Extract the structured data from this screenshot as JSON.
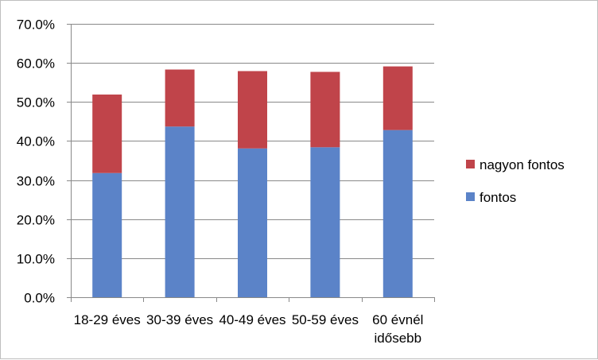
{
  "chart_data": {
    "type": "bar",
    "stacked": true,
    "title": "",
    "xlabel": "",
    "ylabel": "",
    "categories": [
      "18-29 éves",
      "30-39 éves",
      "40-49 éves",
      "50-59 éves",
      "60 évnél idősebb"
    ],
    "category_lines": [
      [
        "18-29 éves"
      ],
      [
        "30-39 éves"
      ],
      [
        "40-49 éves"
      ],
      [
        "50-59 éves"
      ],
      [
        "60 évnél",
        "idősebb"
      ]
    ],
    "series": [
      {
        "name": "fontos",
        "color": "#5B83C8",
        "values": [
          31.8,
          43.7,
          38.1,
          38.4,
          42.8
        ]
      },
      {
        "name": "nagyon fontos",
        "color": "#C0444A",
        "values": [
          20.1,
          14.6,
          19.8,
          19.3,
          16.3
        ]
      }
    ],
    "ylim": [
      0,
      70
    ],
    "yticks": [
      0,
      10,
      20,
      30,
      40,
      50,
      60,
      70
    ],
    "ytick_labels": [
      "0.0%",
      "10.0%",
      "20.0%",
      "30.0%",
      "40.0%",
      "50.0%",
      "60.0%",
      "70.0%"
    ],
    "grid": true,
    "legend": {
      "placement": "right",
      "order": [
        "nagyon fontos",
        "fontos"
      ]
    }
  }
}
